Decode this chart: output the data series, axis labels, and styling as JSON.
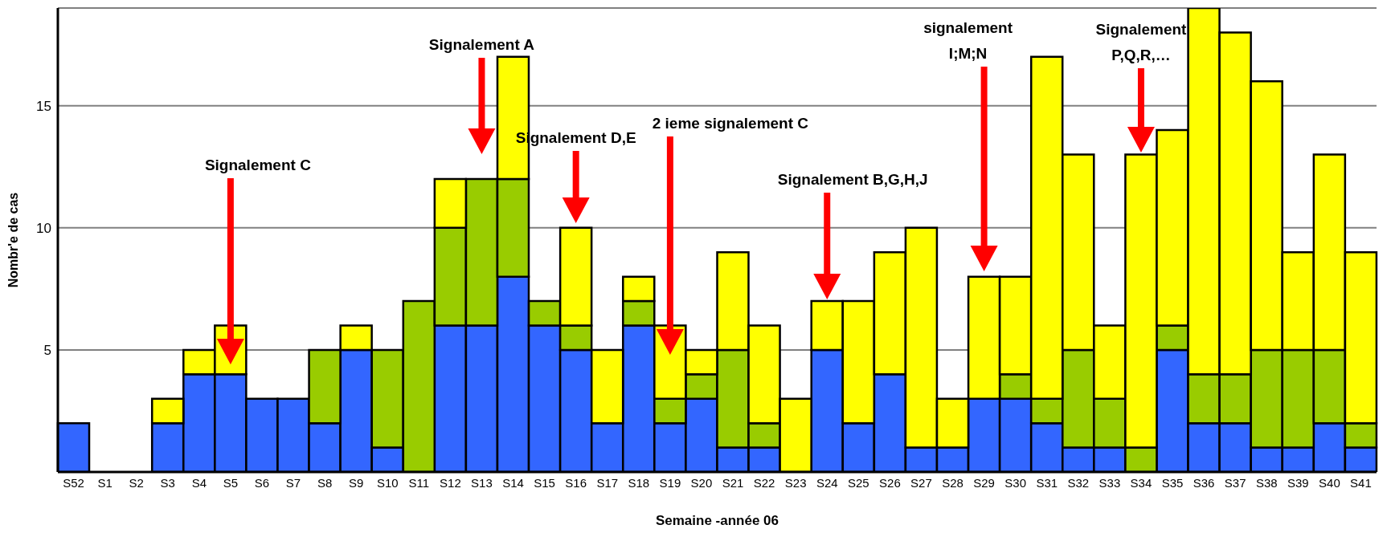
{
  "chart_data": {
    "type": "bar",
    "stacked": true,
    "xlabel": "Semaine -année 06",
    "ylabel": "Nombr'e de cas",
    "categories": [
      "S52",
      "S1",
      "S2",
      "S3",
      "S4",
      "S5",
      "S6",
      "S7",
      "S8",
      "S9",
      "S10",
      "S11",
      "S12",
      "S13",
      "S14",
      "S15",
      "S16",
      "S17",
      "S18",
      "S19",
      "S20",
      "S21",
      "S22",
      "S23",
      "S24",
      "S25",
      "S26",
      "S27",
      "S28",
      "S29",
      "S30",
      "S31",
      "S32",
      "S33",
      "S34",
      "S35",
      "S36",
      "S37",
      "S38",
      "S39",
      "S40",
      "S41"
    ],
    "series": [
      {
        "color": "#3366ff",
        "values": [
          2,
          0,
          0,
          2,
          4,
          4,
          3,
          3,
          2,
          5,
          1,
          0,
          6,
          6,
          8,
          6,
          5,
          2,
          6,
          2,
          3,
          1,
          1,
          0,
          5,
          2,
          4,
          1,
          1,
          3,
          3,
          2,
          1,
          1,
          0,
          5,
          2,
          2,
          1,
          1,
          2,
          1
        ]
      },
      {
        "color": "#99cc00",
        "values": [
          0,
          0,
          0,
          0,
          0,
          0,
          0,
          0,
          3,
          0,
          4,
          7,
          4,
          6,
          4,
          1,
          1,
          0,
          1,
          1,
          1,
          4,
          1,
          0,
          0,
          0,
          0,
          0,
          0,
          0,
          1,
          1,
          4,
          2,
          1,
          1,
          2,
          2,
          4,
          4,
          3,
          1
        ]
      },
      {
        "color": "#ffff00",
        "values": [
          0,
          0,
          0,
          1,
          1,
          2,
          0,
          0,
          0,
          1,
          0,
          0,
          2,
          0,
          5,
          0,
          4,
          3,
          1,
          3,
          1,
          4,
          4,
          3,
          2,
          5,
          5,
          9,
          2,
          5,
          4,
          14,
          8,
          3,
          12,
          8,
          15,
          14,
          11,
          4,
          8,
          7
        ]
      }
    ],
    "ylim": [
      0,
      19
    ],
    "yticks": [
      5,
      10,
      15
    ],
    "grid": "y",
    "annotations": [
      "Signalement C",
      "Signalement A",
      "Signalement D,E",
      "2 ieme signalement C",
      "Signalement B,G,H,J",
      "signalement I;M;N",
      "Signalement P,Q,R,…"
    ]
  }
}
